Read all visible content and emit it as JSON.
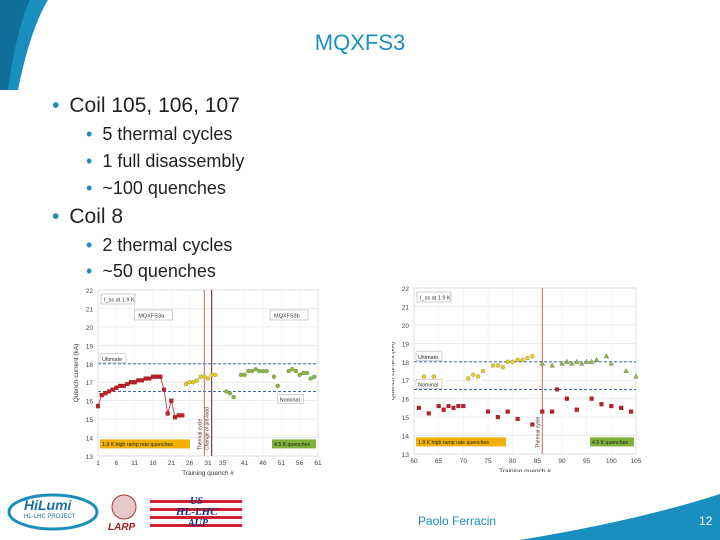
{
  "title": "MQXFS3",
  "bullets": [
    {
      "text": "Coil 105, 106, 107",
      "sub": [
        "5 thermal cycles",
        "1 full disassembly",
        "~100 quenches"
      ]
    },
    {
      "text": "Coil 8",
      "sub": [
        "2 thermal cycles",
        "~50 quenches"
      ]
    }
  ],
  "footer": {
    "author": "Paolo Ferracin",
    "page": "12"
  },
  "logos": {
    "hilumi_line1": "HiLumi",
    "hilumi_line2": "HL-LHC PROJECT",
    "larp": "LARP",
    "aup_line1": "US",
    "aup_line2": "HL-LHC",
    "aup_line3": "AUP"
  },
  "colors": {
    "accent": "#1a8fbf",
    "red": "#c0202a",
    "yellow": "#e8d018",
    "green": "#8ab83c",
    "dash_blue": "#2255aa"
  },
  "chart_data": [
    {
      "type": "scatter",
      "title": "I_ss at 1.9 K",
      "xlabel": "Training quench #",
      "ylabel": "Quench current (kA)",
      "ylim": [
        13,
        22
      ],
      "y_ticks": [
        "22",
        "21",
        "20",
        "19",
        "18",
        "17",
        "16",
        "15",
        "14",
        "13"
      ],
      "x_ticks": [
        "1",
        "6",
        "11",
        "16",
        "21",
        "26",
        "31",
        "35",
        "41",
        "46",
        "51",
        "56",
        "61"
      ],
      "x_range": [
        1,
        61
      ],
      "grid": true,
      "panel_labels": [
        "MQXFS3a",
        "MQXFS3b"
      ],
      "hlines": [
        {
          "label": "Ultimate",
          "y": 18.0
        },
        {
          "label": "Nominal",
          "y": 16.5
        }
      ],
      "vlines": [
        {
          "label": "Thermal cycle",
          "x": 30
        },
        {
          "label": "Change of pre-load",
          "x": 32
        }
      ],
      "legend": [
        "1.9 K high ramp rate quenches",
        "4.5 K quenches"
      ],
      "series": [
        {
          "color": "red",
          "points": [
            [
              1,
              15.7
            ],
            [
              2,
              16.3
            ],
            [
              3,
              16.4
            ],
            [
              4,
              16.5
            ],
            [
              5,
              16.6
            ],
            [
              6,
              16.7
            ],
            [
              7,
              16.8
            ],
            [
              8,
              16.8
            ],
            [
              9,
              16.9
            ],
            [
              10,
              17.0
            ],
            [
              11,
              17.0
            ],
            [
              12,
              17.1
            ],
            [
              13,
              17.1
            ],
            [
              14,
              17.2
            ],
            [
              15,
              17.2
            ],
            [
              16,
              17.3
            ],
            [
              17,
              17.3
            ],
            [
              18,
              17.3
            ],
            [
              19,
              16.6
            ],
            [
              20,
              15.3
            ],
            [
              21,
              16.0
            ],
            [
              22,
              15.1
            ],
            [
              23,
              15.2
            ],
            [
              24,
              15.2
            ]
          ]
        },
        {
          "color": "yellow",
          "points": [
            [
              25,
              16.9
            ],
            [
              26,
              17.0
            ],
            [
              27,
              17.0
            ],
            [
              28,
              17.1
            ],
            [
              29,
              17.3
            ],
            [
              30,
              17.3
            ],
            [
              31,
              17.2
            ],
            [
              32,
              17.4
            ],
            [
              33,
              17.4
            ]
          ]
        },
        {
          "color": "green",
          "points": [
            [
              36,
              16.5
            ],
            [
              37,
              16.4
            ],
            [
              38,
              16.2
            ],
            [
              40,
              17.4
            ],
            [
              41,
              17.4
            ],
            [
              42,
              17.6
            ],
            [
              43,
              17.6
            ],
            [
              44,
              17.7
            ],
            [
              45,
              17.6
            ],
            [
              46,
              17.6
            ],
            [
              47,
              17.6
            ],
            [
              49,
              17.3
            ],
            [
              50,
              16.8
            ],
            [
              53,
              17.6
            ],
            [
              54,
              17.7
            ],
            [
              55,
              17.6
            ],
            [
              56,
              17.4
            ],
            [
              57,
              17.5
            ],
            [
              58,
              17.5
            ],
            [
              59,
              17.2
            ],
            [
              60,
              17.3
            ]
          ]
        }
      ]
    },
    {
      "type": "scatter",
      "title": "I_ss at 1.9 K",
      "xlabel": "Training quench #",
      "ylabel": "Quench current (kA)",
      "ylim": [
        13,
        22
      ],
      "y_ticks": [
        "22",
        "21",
        "20",
        "19",
        "18",
        "17",
        "16",
        "15",
        "14",
        "13"
      ],
      "x_ticks": [
        "60",
        "65",
        "70",
        "75",
        "80",
        "85",
        "90",
        "95",
        "100",
        "105"
      ],
      "x_range": [
        60,
        105
      ],
      "grid": true,
      "hlines": [
        {
          "label": "Ultimate",
          "y": 18.0
        },
        {
          "label": "Nominal",
          "y": 16.5
        }
      ],
      "vlines": [
        {
          "label": "Thermal cycle",
          "x": 86
        }
      ],
      "legend": [
        "1.9 K high ramp rate quenches",
        "4.5 K quenches"
      ],
      "series": [
        {
          "color": "red",
          "points": [
            [
              61,
              15.5
            ],
            [
              63,
              15.2
            ],
            [
              65,
              15.6
            ],
            [
              66,
              15.4
            ],
            [
              67,
              15.6
            ],
            [
              68,
              15.5
            ],
            [
              69,
              15.6
            ],
            [
              70,
              15.6
            ],
            [
              75,
              15.3
            ],
            [
              77,
              15.0
            ],
            [
              79,
              15.3
            ],
            [
              81,
              14.9
            ],
            [
              84,
              14.6
            ],
            [
              86,
              15.3
            ],
            [
              88,
              15.3
            ],
            [
              89,
              16.5
            ],
            [
              91,
              16.0
            ],
            [
              93,
              15.4
            ],
            [
              96,
              16.0
            ],
            [
              98,
              15.7
            ],
            [
              100,
              15.6
            ],
            [
              102,
              15.5
            ],
            [
              104,
              15.3
            ]
          ]
        },
        {
          "color": "yellow",
          "points": [
            [
              62,
              17.2
            ],
            [
              64,
              17.2
            ],
            [
              71,
              17.1
            ],
            [
              72,
              17.3
            ],
            [
              73,
              17.2
            ],
            [
              74,
              17.5
            ],
            [
              76,
              17.8
            ],
            [
              77,
              17.8
            ],
            [
              78,
              17.7
            ],
            [
              79,
              18.0
            ],
            [
              80,
              18.0
            ],
            [
              81,
              18.1
            ],
            [
              82,
              18.1
            ],
            [
              83,
              18.2
            ],
            [
              84,
              18.3
            ]
          ]
        },
        {
          "color": "green",
          "points": [
            [
              86,
              17.9
            ],
            [
              88,
              17.8
            ],
            [
              90,
              17.9
            ],
            [
              91,
              18.0
            ],
            [
              92,
              17.9
            ],
            [
              93,
              18.0
            ],
            [
              94,
              17.9
            ],
            [
              95,
              18.0
            ],
            [
              96,
              18.0
            ],
            [
              97,
              18.1
            ],
            [
              99,
              18.3
            ],
            [
              100,
              17.9
            ],
            [
              103,
              17.5
            ],
            [
              105,
              17.2
            ]
          ]
        }
      ]
    }
  ]
}
